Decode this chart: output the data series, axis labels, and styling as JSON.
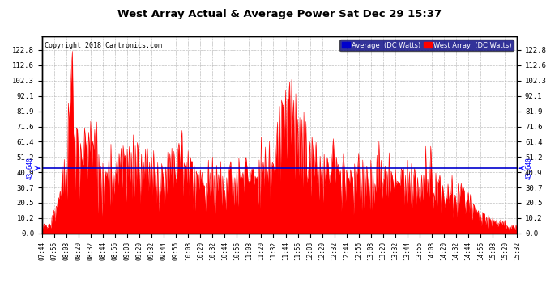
{
  "title": "West Array Actual & Average Power Sat Dec 29 15:37",
  "copyright": "Copyright 2018 Cartronics.com",
  "average_value": 43.64,
  "y_ticks": [
    0.0,
    10.2,
    20.5,
    30.7,
    40.9,
    51.2,
    61.4,
    71.6,
    81.9,
    92.1,
    102.3,
    112.6,
    122.8
  ],
  "y_max": 132.0,
  "background_color": "#ffffff",
  "plot_bg_color": "#ffffff",
  "grid_color": "#b0b0b0",
  "fill_color": "#ff0000",
  "line_color": "#ff0000",
  "avg_line_color": "#0000cd",
  "legend_avg_bg": "#0000cd",
  "legend_west_bg": "#ff0000",
  "legend_avg_text": "Average  (DC Watts)",
  "legend_west_text": "West Array  (DC Watts)",
  "x_tick_labels": [
    "07:44",
    "07:56",
    "08:08",
    "08:20",
    "08:32",
    "08:44",
    "08:56",
    "09:08",
    "09:20",
    "09:32",
    "09:44",
    "09:56",
    "10:08",
    "10:20",
    "10:32",
    "10:44",
    "10:56",
    "11:08",
    "11:20",
    "11:32",
    "11:44",
    "11:56",
    "12:08",
    "12:20",
    "12:32",
    "12:44",
    "12:56",
    "13:08",
    "13:20",
    "13:32",
    "13:44",
    "13:56",
    "14:08",
    "14:20",
    "14:32",
    "14:44",
    "14:56",
    "15:08",
    "15:20",
    "15:32"
  ],
  "n_points": 469,
  "seed": 12345
}
